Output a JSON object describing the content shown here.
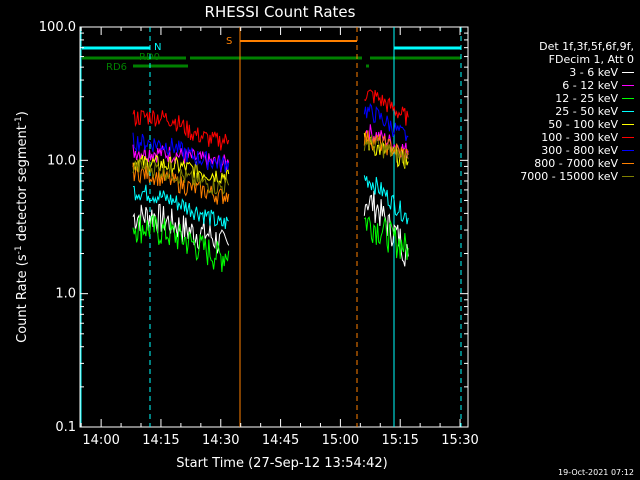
{
  "chart_data": {
    "type": "line",
    "title": "RHESSI Count Rates",
    "xlabel": "Start Time (27-Sep-12 13:54:42)",
    "ylabel_main": "Count Rate (s",
    "ylabel_sup1": "-1",
    "ylabel_mid": " detector segment",
    "ylabel_sup2": "-1",
    "ylabel_end": ")",
    "y_scale": "log",
    "ylim": [
      0.1,
      100
    ],
    "xlim": [
      "13:54:42",
      "15:32:00"
    ],
    "x_ticks": [
      "14:00",
      "14:15",
      "14:30",
      "14:45",
      "15:00",
      "15:15",
      "15:30"
    ],
    "y_ticks": [
      "0.1",
      "1.0",
      "10.0",
      "100.0"
    ],
    "legend_header": [
      "Det 1f,3f,5f,6f,9f,",
      "FDecim 1, Att 0"
    ],
    "legend_position": "right",
    "series": [
      {
        "name": "3 - 6 keV",
        "color": "#ffffff",
        "values": [
          3.8,
          3.9,
          3.4,
          2.9,
          2.8,
          2.4,
          2.3
        ],
        "x": [
          "14:08",
          "14:13",
          "14:18",
          "14:23",
          "14:27",
          "14:30",
          "14:32"
        ],
        "values2": [
          5.2,
          4.6,
          3.3,
          2.6,
          1.9
        ],
        "x2": [
          "15:06",
          "15:09",
          "15:12",
          "15:15",
          "15:17"
        ]
      },
      {
        "name": "6 - 12 keV",
        "color": "#ff00ff",
        "values": [
          11.8,
          11.5,
          11.2,
          10.5,
          9.8,
          9.5,
          9.6
        ],
        "x": [
          "14:08",
          "14:13",
          "14:18",
          "14:23",
          "14:27",
          "14:30",
          "14:32"
        ],
        "values2": [
          17.0,
          15.5,
          14.0,
          12.5,
          11.8
        ],
        "x2": [
          "15:06",
          "15:09",
          "15:12",
          "15:15",
          "15:17"
        ]
      },
      {
        "name": "12 - 25 keV",
        "color": "#00ff00",
        "values": [
          3.3,
          3.1,
          2.8,
          2.4,
          2.1,
          1.9,
          2.1
        ],
        "x": [
          "14:08",
          "14:13",
          "14:18",
          "14:23",
          "14:27",
          "14:30",
          "14:32"
        ],
        "values2": [
          3.6,
          3.2,
          2.8,
          2.4,
          2.2
        ],
        "x2": [
          "15:06",
          "15:09",
          "15:12",
          "15:15",
          "15:17"
        ]
      },
      {
        "name": "25 - 50 keV",
        "color": "#00ffff",
        "values": [
          6.0,
          5.6,
          5.0,
          4.3,
          3.8,
          3.3,
          3.5
        ],
        "x": [
          "14:08",
          "14:13",
          "14:18",
          "14:23",
          "14:27",
          "14:30",
          "14:32"
        ],
        "values2": [
          7.5,
          6.5,
          5.3,
          4.3,
          3.7
        ],
        "x2": [
          "15:06",
          "15:09",
          "15:12",
          "15:15",
          "15:17"
        ]
      },
      {
        "name": "50 - 100 keV",
        "color": "#ffff00",
        "values": [
          9.7,
          9.5,
          9.2,
          8.6,
          8.0,
          7.8,
          7.9
        ],
        "x": [
          "14:08",
          "14:13",
          "14:18",
          "14:23",
          "14:27",
          "14:30",
          "14:32"
        ],
        "values2": [
          14.0,
          12.5,
          11.5,
          10.5,
          9.8
        ],
        "x2": [
          "15:06",
          "15:09",
          "15:12",
          "15:15",
          "15:17"
        ]
      },
      {
        "name": "100 - 300 keV",
        "color": "#ff0000",
        "values": [
          21.0,
          21.5,
          20.5,
          16.0,
          14.5,
          14.0,
          14.2
        ],
        "x": [
          "14:08",
          "14:13",
          "14:18",
          "14:23",
          "14:27",
          "14:30",
          "14:32"
        ],
        "values2": [
          32.0,
          30.0,
          26.0,
          22.5,
          21.0
        ],
        "x2": [
          "15:06",
          "15:09",
          "15:12",
          "15:15",
          "15:17"
        ]
      },
      {
        "name": "300 - 800 keV",
        "color": "#0000ff",
        "values": [
          14.0,
          13.5,
          12.8,
          10.7,
          10.0,
          9.5,
          9.6
        ],
        "x": [
          "14:08",
          "14:13",
          "14:18",
          "14:23",
          "14:27",
          "14:30",
          "14:32"
        ],
        "values2": [
          24.0,
          22.0,
          19.0,
          16.0,
          15.0
        ],
        "x2": [
          "15:06",
          "15:09",
          "15:12",
          "15:15",
          "15:17"
        ]
      },
      {
        "name": "800 - 7000 keV",
        "color": "#ff8000",
        "values": [
          8.3,
          7.8,
          7.0,
          6.2,
          5.8,
          5.4,
          5.6
        ],
        "x": [
          "14:08",
          "14:13",
          "14:18",
          "14:23",
          "14:27",
          "14:30",
          "14:32"
        ],
        "values2": [
          15.0,
          14.0,
          12.8,
          11.5,
          11.0
        ],
        "x2": [
          "15:06",
          "15:09",
          "15:12",
          "15:15",
          "15:17"
        ]
      },
      {
        "name": "7000 - 15000 keV",
        "color": "#808000",
        "values": [
          9.1,
          8.8,
          8.1,
          7.1,
          6.6,
          6.3,
          6.5
        ],
        "x": [
          "14:08",
          "14:13",
          "14:18",
          "14:23",
          "14:27",
          "14:30",
          "14:32"
        ],
        "values2": [
          14.0,
          13.0,
          11.8,
          10.8,
          10.2
        ],
        "x2": [
          "15:06",
          "15:09",
          "15:12",
          "15:15",
          "15:17"
        ]
      }
    ],
    "annotations": [
      {
        "label": "N",
        "color": "#00ffff"
      },
      {
        "label": "RD0",
        "color": "#008000"
      },
      {
        "label": "RD6",
        "color": "#008000"
      },
      {
        "label": "S",
        "color": "#ff8000"
      }
    ]
  },
  "timestamp": "19-Oct-2021 07:12"
}
